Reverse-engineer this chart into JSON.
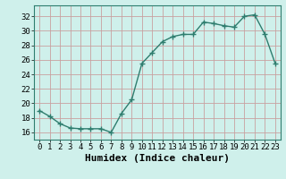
{
  "x": [
    0,
    1,
    2,
    3,
    4,
    5,
    6,
    7,
    8,
    9,
    10,
    11,
    12,
    13,
    14,
    15,
    16,
    17,
    18,
    19,
    20,
    21,
    22,
    23
  ],
  "y": [
    19,
    18.2,
    17.2,
    16.6,
    16.5,
    16.5,
    16.5,
    16.0,
    18.6,
    20.5,
    25.5,
    27.0,
    28.5,
    29.2,
    29.5,
    29.5,
    31.2,
    31.0,
    30.7,
    30.5,
    32.0,
    32.2,
    29.5,
    25.5
  ],
  "line_color": "#2e7d6e",
  "bg_color": "#cff0eb",
  "grid_color": "#c8a0a0",
  "xlabel": "Humidex (Indice chaleur)",
  "xlim": [
    -0.5,
    23.5
  ],
  "ylim": [
    15.0,
    33.5
  ],
  "yticks": [
    16,
    18,
    20,
    22,
    24,
    26,
    28,
    30,
    32
  ],
  "xticks": [
    0,
    1,
    2,
    3,
    4,
    5,
    6,
    7,
    8,
    9,
    10,
    11,
    12,
    13,
    14,
    15,
    16,
    17,
    18,
    19,
    20,
    21,
    22,
    23
  ],
  "marker": "+",
  "marker_size": 4,
  "line_width": 1.0,
  "xlabel_fontsize": 8,
  "tick_fontsize": 6.5
}
